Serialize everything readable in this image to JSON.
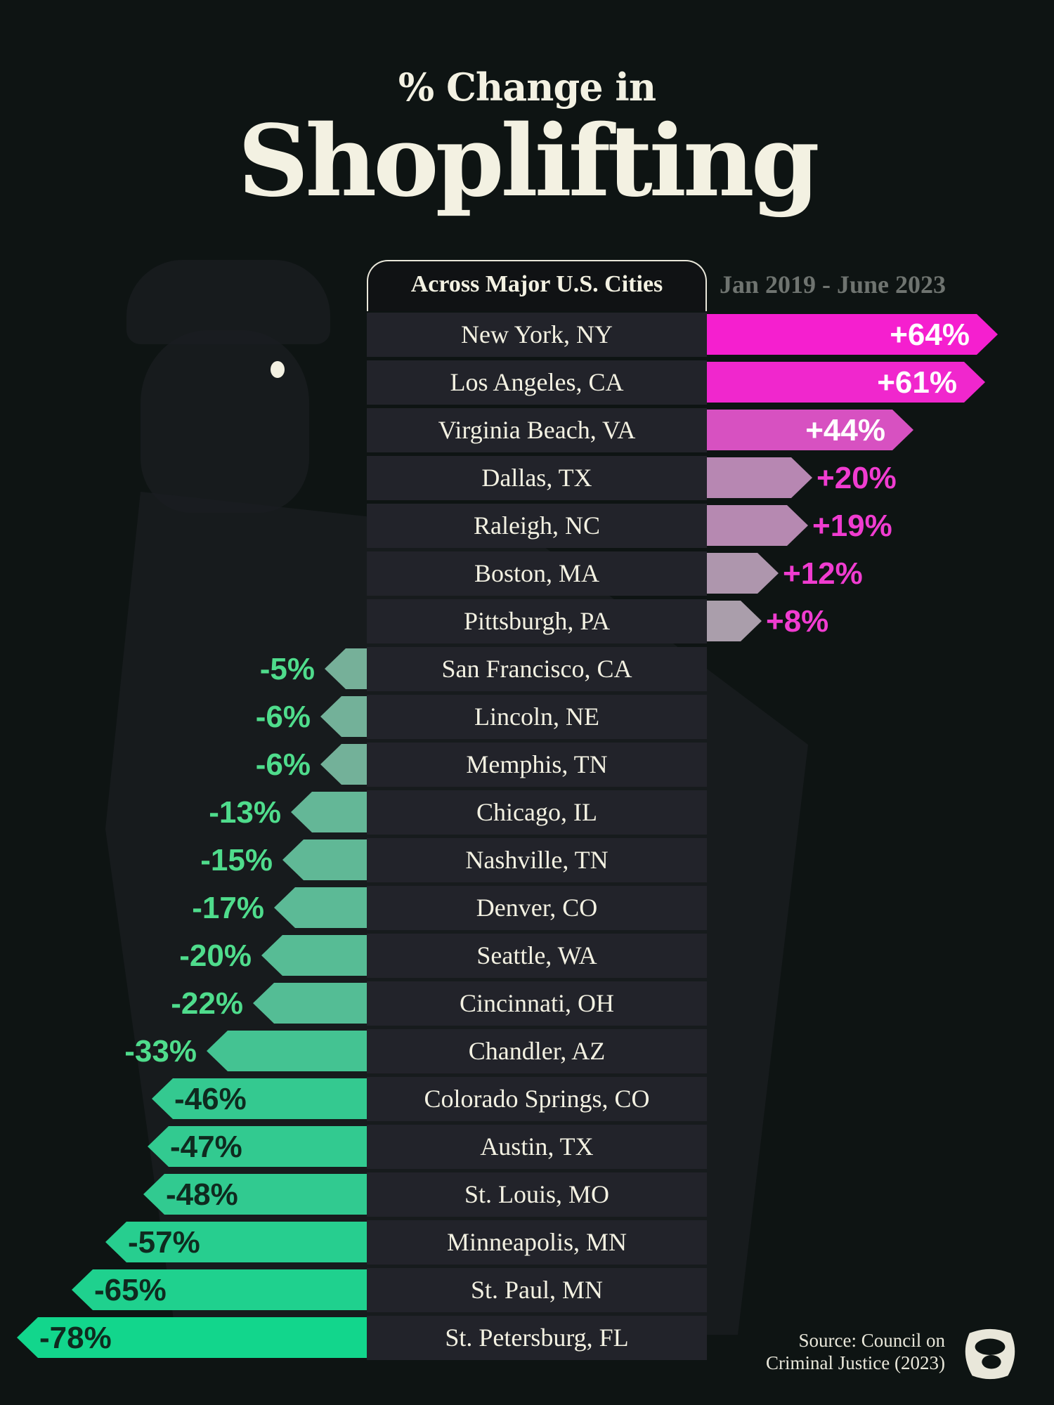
{
  "title_line1": "% Change in",
  "title_line2": "Shoplifting",
  "column_header": "Across Major U.S. Cities",
  "date_range": "Jan 2019 - June 2023",
  "source": {
    "line1": "Source: Council on",
    "line2": "Criminal Justice (2023)"
  },
  "colors": {
    "positive_strong": "#f51fcf",
    "positive_weak": "#a3a9a8",
    "negative_weak": "#8ea79c",
    "negative_strong": "#12d68c",
    "positive_label": "#f03cd0",
    "negative_label": "#4fdc8c"
  },
  "chart_data": {
    "type": "bar",
    "orientation": "horizontal",
    "title": "% Change in Shoplifting",
    "subtitle": "Across Major U.S. Cities",
    "note": "Jan 2019 - June 2023",
    "categories": [
      "New York, NY",
      "Los Angeles, CA",
      "Virginia Beach, VA",
      "Dallas, TX",
      "Raleigh, NC",
      "Boston, MA",
      "Pittsburgh, PA",
      "San Francisco, CA",
      "Lincoln, NE",
      "Memphis, TN",
      "Chicago, IL",
      "Nashville, TN",
      "Denver, CO",
      "Seattle, WA",
      "Cincinnati, OH",
      "Chandler, AZ",
      "Colorado Springs, CO",
      "Austin, TX",
      "St. Louis, MO",
      "Minneapolis, MN",
      "St. Paul, MN",
      "St. Petersburg, FL"
    ],
    "values": [
      64,
      61,
      44,
      20,
      19,
      12,
      8,
      -5,
      -6,
      -6,
      -13,
      -15,
      -17,
      -20,
      -22,
      -33,
      -46,
      -47,
      -48,
      -57,
      -65,
      -78
    ],
    "labels": [
      "+64%",
      "+61%",
      "+44%",
      "+20%",
      "+19%",
      "+12%",
      "+8%",
      "-5%",
      "-6%",
      "-6%",
      "-13%",
      "-15%",
      "-17%",
      "-20%",
      "-22%",
      "-33%",
      "-46%",
      "-47%",
      "-48%",
      "-57%",
      "-65%",
      "-78%"
    ]
  }
}
